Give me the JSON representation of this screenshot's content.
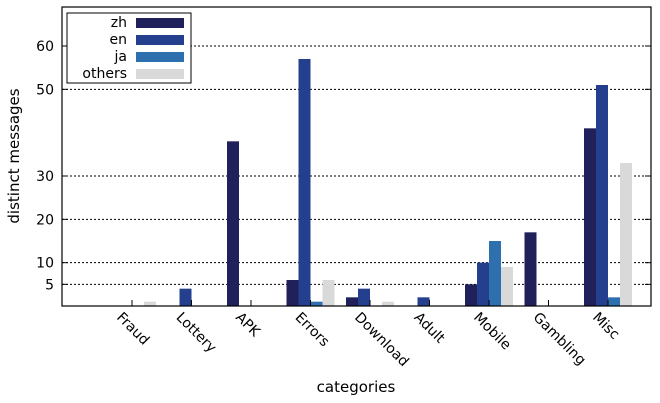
{
  "chart_data": {
    "type": "bar",
    "title": "",
    "xlabel": "categories",
    "ylabel": "distinct messages",
    "categories": [
      "Fraud",
      "Lottery",
      "APK",
      "Errors",
      "Download",
      "Adult",
      "Mobile",
      "Gambling",
      "Misc"
    ],
    "series": [
      {
        "name": "zh",
        "color": "#20205a",
        "values": [
          0,
          0,
          38,
          6,
          2,
          0,
          5,
          17,
          41
        ]
      },
      {
        "name": "en",
        "color": "#243f8e",
        "values": [
          0,
          4,
          0,
          57,
          4,
          2,
          10,
          0,
          51
        ]
      },
      {
        "name": "ja",
        "color": "#2e6fad",
        "values": [
          0,
          0,
          0,
          1,
          0,
          0,
          15,
          0,
          2
        ]
      },
      {
        "name": "others",
        "color": "#d9d9d9",
        "values": [
          1,
          0,
          0,
          6,
          1,
          0,
          9,
          0,
          33
        ]
      }
    ],
    "ylim": [
      0,
      69
    ],
    "yticks": [
      5,
      10,
      20,
      30,
      50,
      60
    ],
    "grid": true,
    "legend_position": "top-left"
  }
}
